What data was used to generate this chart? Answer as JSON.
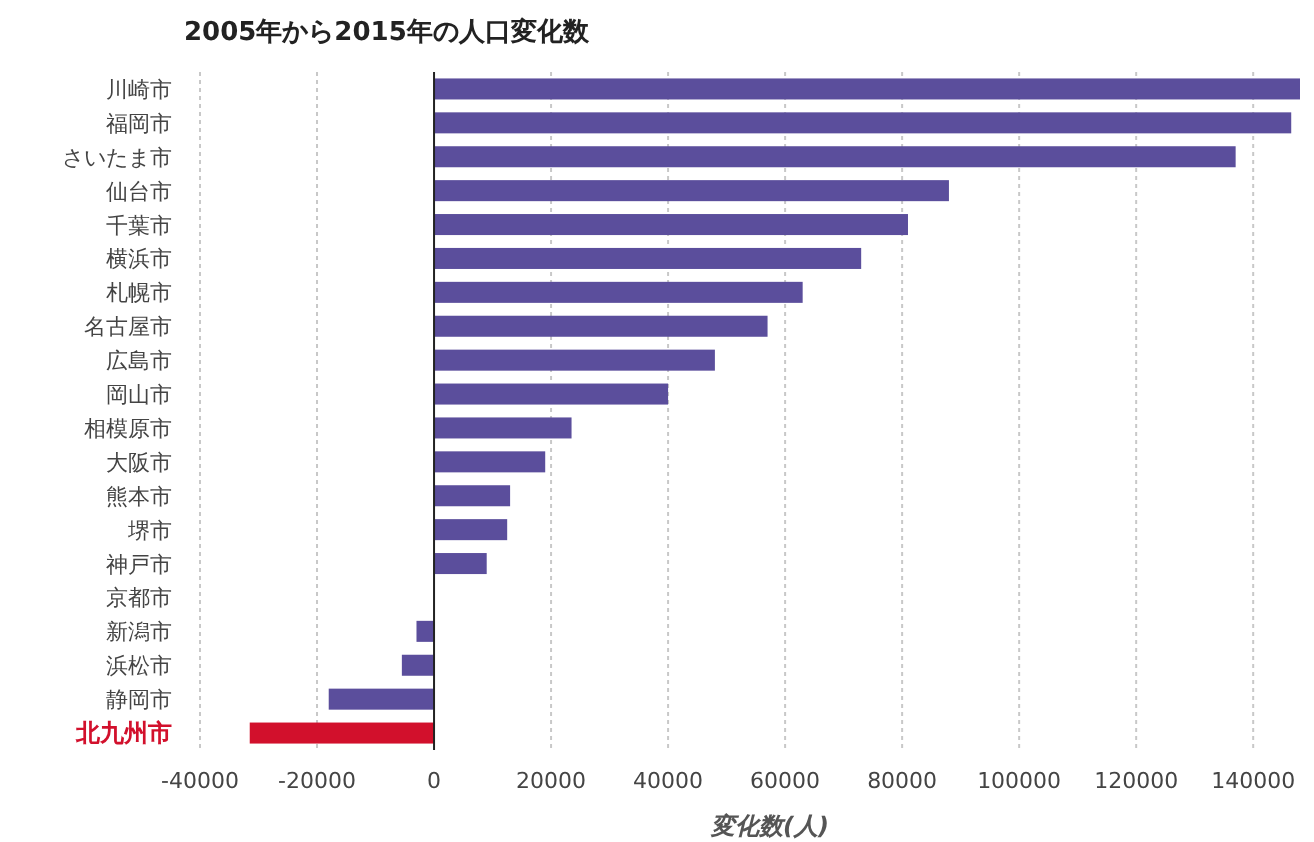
{
  "chart_data": {
    "type": "bar",
    "orientation": "horizontal",
    "title": "2005年から2015年の人口変化数",
    "xlabel": "変化数(人)",
    "categories": [
      "川崎市",
      "福岡市",
      "さいたま市",
      "仙台市",
      "千葉市",
      "横浜市",
      "札幌市",
      "名古屋市",
      "広島市",
      "岡山市",
      "相模原市",
      "大阪市",
      "熊本市",
      "堺市",
      "神戸市",
      "京都市",
      "新潟市",
      "浜松市",
      "静岡市",
      "北九州市"
    ],
    "values": [
      148000,
      146500,
      137000,
      88000,
      81000,
      73000,
      63000,
      57000,
      48000,
      40000,
      23500,
      19000,
      13000,
      12500,
      9000,
      0,
      -3000,
      -5500,
      -18000,
      -31500
    ],
    "colors": [
      "#5b4e9c",
      "#5b4e9c",
      "#5b4e9c",
      "#5b4e9c",
      "#5b4e9c",
      "#5b4e9c",
      "#5b4e9c",
      "#5b4e9c",
      "#5b4e9c",
      "#5b4e9c",
      "#5b4e9c",
      "#5b4e9c",
      "#5b4e9c",
      "#5b4e9c",
      "#5b4e9c",
      "#5b4e9c",
      "#5b4e9c",
      "#5b4e9c",
      "#5b4e9c",
      "#d2102c"
    ],
    "xlim": [
      -40000,
      148000
    ],
    "xticks": [
      -40000,
      -20000,
      0,
      20000,
      40000,
      60000,
      80000,
      100000,
      120000,
      140000
    ],
    "grid": "x"
  }
}
